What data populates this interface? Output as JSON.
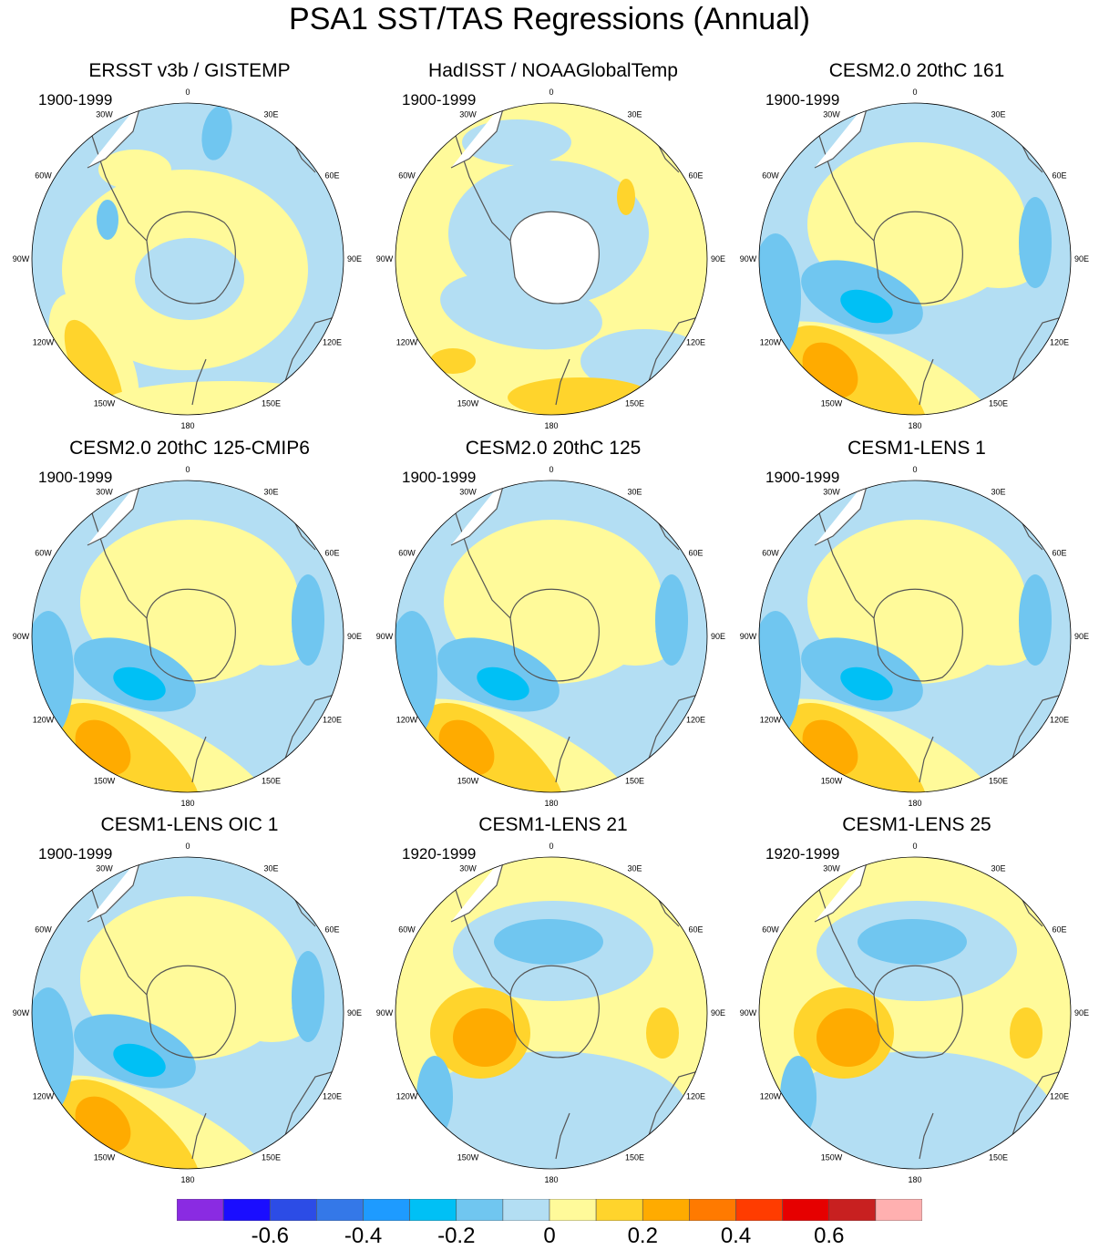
{
  "title": "PSA1 SST/TAS Regressions (Annual)",
  "longitude_labels": [
    "0",
    "30E",
    "60E",
    "90E",
    "120E",
    "150E",
    "180",
    "150W",
    "120W",
    "90W",
    "60W",
    "30W"
  ],
  "panels": [
    {
      "title": "ERSST v3b / GISTEMP",
      "period": "1900-1999",
      "pattern": "obs1"
    },
    {
      "title": "HadISST / NOAAGlobalTemp",
      "period": "1900-1999",
      "pattern": "obs2"
    },
    {
      "title": "CESM2.0 20thC 161",
      "period": "1900-1999",
      "pattern": "model"
    },
    {
      "title": "CESM2.0 20thC 125-CMIP6",
      "period": "1900-1999",
      "pattern": "model"
    },
    {
      "title": "CESM2.0 20thC 125",
      "period": "1900-1999",
      "pattern": "model"
    },
    {
      "title": "CESM1-LENS 1",
      "period": "1900-1999",
      "pattern": "model"
    },
    {
      "title": "CESM1-LENS OIC 1",
      "period": "1900-1999",
      "pattern": "model"
    },
    {
      "title": "CESM1-LENS 21",
      "period": "1920-1999",
      "pattern": "warm"
    },
    {
      "title": "CESM1-LENS 25",
      "period": "1920-1999",
      "pattern": "warm"
    }
  ],
  "colorbar": {
    "colors": [
      "#8a2be2",
      "#1a0dff",
      "#2c4ce6",
      "#3478e8",
      "#1e9bff",
      "#00c0f5",
      "#70c6f0",
      "#b3def3",
      "#fffa9a",
      "#ffd42c",
      "#ffab00",
      "#ff7a00",
      "#ff3c00",
      "#e60000",
      "#c82020",
      "#ffb0b0"
    ],
    "tick_labels": [
      "-0.6",
      "-0.4",
      "-0.2",
      "0",
      "0.2",
      "0.4",
      "0.6"
    ],
    "tick_values": [
      -0.6,
      -0.4,
      -0.2,
      0,
      0.2,
      0.4,
      0.6
    ]
  },
  "land_color": "#ffffff"
}
